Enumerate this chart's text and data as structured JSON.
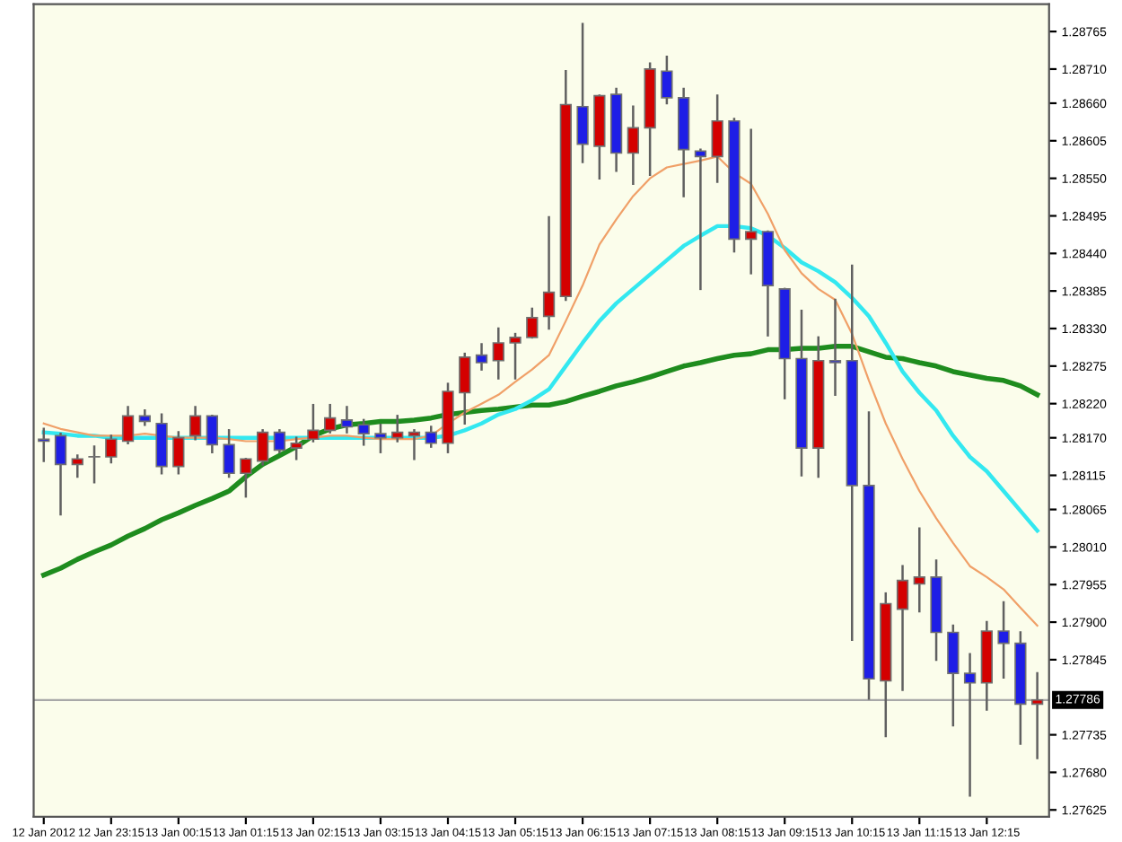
{
  "chart_data": {
    "type": "candlestick",
    "categories": [
      "12 Jan 2012",
      null,
      null,
      null,
      "12 Jan 23:15",
      null,
      null,
      null,
      "13 Jan 00:15",
      null,
      null,
      null,
      "13 Jan 01:15",
      null,
      null,
      null,
      "13 Jan 02:15",
      null,
      null,
      null,
      "13 Jan 03:15",
      null,
      null,
      null,
      "13 Jan 04:15",
      null,
      null,
      null,
      "13 Jan 05:15",
      null,
      null,
      null,
      "13 Jan 06:15",
      null,
      null,
      null,
      "13 Jan 07:15",
      null,
      null,
      null,
      "13 Jan 08:15",
      null,
      null,
      null,
      "13 Jan 09:15",
      null,
      null,
      null,
      "13 Jan 10:15",
      null,
      null,
      null,
      "13 Jan 11:15",
      null,
      null,
      null,
      "13 Jan 12:15",
      null,
      null,
      null
    ],
    "ohlc": [
      [
        1.28168,
        1.28183,
        1.28136,
        1.28165
      ],
      [
        1.28173,
        1.28176,
        1.28058,
        1.28131
      ],
      [
        1.28131,
        1.28144,
        1.28113,
        1.28139
      ],
      [
        1.28142,
        1.28157,
        1.28105,
        1.28142
      ],
      [
        1.28142,
        1.28173,
        1.28134,
        1.28168
      ],
      [
        1.28165,
        1.28215,
        1.28162,
        1.28202
      ],
      [
        1.28202,
        1.2821,
        1.28189,
        1.28194
      ],
      [
        1.28191,
        1.28204,
        1.28118,
        1.28128
      ],
      [
        1.28128,
        1.28178,
        1.28118,
        1.2817
      ],
      [
        1.28173,
        1.28215,
        1.28168,
        1.28202
      ],
      [
        1.28202,
        1.28202,
        1.28149,
        1.2816
      ],
      [
        1.2816,
        1.28181,
        1.28113,
        1.28118
      ],
      [
        1.28118,
        1.28139,
        1.28084,
        1.28139
      ],
      [
        1.28136,
        1.28181,
        1.28131,
        1.28178
      ],
      [
        1.28178,
        1.28181,
        1.28149,
        1.28152
      ],
      [
        1.28155,
        1.2817,
        1.28139,
        1.28162
      ],
      [
        1.28168,
        1.28218,
        1.28165,
        1.28181
      ],
      [
        1.28181,
        1.28218,
        1.28178,
        1.28199
      ],
      [
        1.28196,
        1.28215,
        1.28178,
        1.28186
      ],
      [
        1.28189,
        1.28196,
        1.2816,
        1.28176
      ],
      [
        1.28176,
        1.28189,
        1.28149,
        1.2817
      ],
      [
        1.2817,
        1.28202,
        1.28165,
        1.28178
      ],
      [
        1.28173,
        1.28181,
        1.28139,
        1.28178
      ],
      [
        1.28178,
        1.28186,
        1.28157,
        1.28162
      ],
      [
        1.28162,
        1.28249,
        1.28149,
        1.28238
      ],
      [
        1.28236,
        1.28293,
        1.28191,
        1.28288
      ],
      [
        1.28291,
        1.28307,
        1.2827,
        1.2828
      ],
      [
        1.28283,
        1.2833,
        1.28257,
        1.28309
      ],
      [
        1.28309,
        1.28322,
        1.28257,
        1.28317
      ],
      [
        1.28317,
        1.28359,
        1.28317,
        1.28346
      ],
      [
        1.28348,
        1.28493,
        1.2833,
        1.28383
      ],
      [
        1.28377,
        1.28707,
        1.28372,
        1.28658
      ],
      [
        1.28655,
        1.28776,
        1.28574,
        1.286
      ],
      [
        1.28597,
        1.28671,
        1.2855,
        1.28671
      ],
      [
        1.28673,
        1.28681,
        1.28561,
        1.28587
      ],
      [
        1.28587,
        1.28655,
        1.28542,
        1.28624
      ],
      [
        1.28624,
        1.28718,
        1.28555,
        1.2871
      ],
      [
        1.28707,
        1.28728,
        1.2866,
        1.28668
      ],
      [
        1.28668,
        1.28681,
        1.28524,
        1.28592
      ],
      [
        1.2859,
        1.28592,
        1.28388,
        1.28582
      ],
      [
        1.28582,
        1.28671,
        1.28545,
        1.28634
      ],
      [
        1.28634,
        1.28637,
        1.28443,
        1.28461
      ],
      [
        1.28461,
        1.28621,
        1.28411,
        1.28472
      ],
      [
        1.28472,
        1.28472,
        1.2832,
        1.28393
      ],
      [
        1.28388,
        1.28388,
        1.28228,
        1.28286
      ],
      [
        1.28286,
        1.28356,
        1.28115,
        1.28155
      ],
      [
        1.28155,
        1.28317,
        1.28113,
        1.28283
      ],
      [
        1.28283,
        1.28372,
        1.28233,
        1.2828
      ],
      [
        1.28283,
        1.28422,
        1.27874,
        1.281
      ],
      [
        1.281,
        1.28207,
        1.27788,
        1.27817
      ],
      [
        1.27814,
        1.27942,
        1.27733,
        1.27927
      ],
      [
        1.27919,
        1.27982,
        1.27801,
        1.27961
      ],
      [
        1.27956,
        1.28037,
        1.27916,
        1.27966
      ],
      [
        1.27966,
        1.2799,
        1.27845,
        1.27885
      ],
      [
        1.27885,
        1.27895,
        1.27749,
        1.27825
      ],
      [
        1.27825,
        1.27853,
        1.27646,
        1.27811
      ],
      [
        1.27811,
        1.279,
        1.27772,
        1.27887
      ],
      [
        1.27887,
        1.27929,
        1.27819,
        1.27869
      ],
      [
        1.27869,
        1.27885,
        1.27722,
        1.2778
      ],
      [
        1.2778,
        1.27825,
        1.27701,
        1.27786
      ]
    ],
    "colors": [
      "#1e1ee6",
      "#1e1ee6",
      "#d40000",
      "#1e1ee6",
      "#d40000",
      "#d40000",
      "#1e1ee6",
      "#1e1ee6",
      "#d40000",
      "#d40000",
      "#1e1ee6",
      "#1e1ee6",
      "#d40000",
      "#d40000",
      "#1e1ee6",
      "#d40000",
      "#d40000",
      "#d40000",
      "#1e1ee6",
      "#1e1ee6",
      "#1e1ee6",
      "#d40000",
      "#d40000",
      "#1e1ee6",
      "#d40000",
      "#d40000",
      "#1e1ee6",
      "#d40000",
      "#d40000",
      "#d40000",
      "#d40000",
      "#d40000",
      "#1e1ee6",
      "#d40000",
      "#1e1ee6",
      "#d40000",
      "#d40000",
      "#1e1ee6",
      "#1e1ee6",
      "#1e1ee6",
      "#d40000",
      "#1e1ee6",
      "#d40000",
      "#1e1ee6",
      "#1e1ee6",
      "#1e1ee6",
      "#d40000",
      "#1e1ee6",
      "#1e1ee6",
      "#1e1ee6",
      "#d40000",
      "#d40000",
      "#d40000",
      "#1e1ee6",
      "#1e1ee6",
      "#1e1ee6",
      "#d40000",
      "#1e1ee6",
      "#1e1ee6",
      "#d40000"
    ],
    "series": [
      {
        "type": "line",
        "color": "#1e8c1e",
        "values": [
          1.27969,
          1.27979,
          1.27992,
          1.28003,
          1.28013,
          1.28026,
          1.28037,
          1.2805,
          1.2806,
          1.28071,
          1.28081,
          1.28092,
          1.28113,
          1.28131,
          1.28144,
          1.28157,
          1.28173,
          1.28183,
          1.28189,
          1.28191,
          1.28194,
          1.28194,
          1.28196,
          1.28199,
          1.28204,
          1.28207,
          1.2821,
          1.28212,
          1.28215,
          1.28218,
          1.28218,
          1.28223,
          1.28231,
          1.28238,
          1.28246,
          1.28252,
          1.28259,
          1.28267,
          1.28275,
          1.2828,
          1.28286,
          1.28291,
          1.28293,
          1.28299,
          1.28299,
          1.28301,
          1.28301,
          1.28304,
          1.28304,
          1.28296,
          1.28288,
          1.28286,
          1.2828,
          1.28275,
          1.28267,
          1.28262,
          1.28257,
          1.28254,
          1.28246,
          1.28233
        ]
      },
      {
        "type": "line",
        "color": "#33e8f0",
        "values": [
          1.28178,
          1.28176,
          1.28173,
          1.28173,
          1.2817,
          1.2817,
          1.2817,
          1.2817,
          1.2817,
          1.2817,
          1.2817,
          1.2817,
          1.2817,
          1.2817,
          1.2817,
          1.2817,
          1.2817,
          1.2817,
          1.2817,
          1.2817,
          1.2817,
          1.2817,
          1.2817,
          1.2817,
          1.28173,
          1.28181,
          1.28191,
          1.28204,
          1.28212,
          1.28225,
          1.28241,
          1.28275,
          1.28309,
          1.28341,
          1.28367,
          1.28388,
          1.28409,
          1.2843,
          1.28451,
          1.28466,
          1.2848,
          1.2848,
          1.28477,
          1.28466,
          1.28448,
          1.28427,
          1.28414,
          1.28398,
          1.28375,
          1.28348,
          1.28309,
          1.28267,
          1.28236,
          1.2821,
          1.28173,
          1.28142,
          1.28121,
          1.28092,
          1.28063,
          1.28034
        ]
      },
      {
        "type": "line",
        "color": "#f0a068",
        "values": [
          1.28191,
          1.28183,
          1.28178,
          1.28173,
          1.28173,
          1.28173,
          1.28176,
          1.28173,
          1.2817,
          1.2817,
          1.2817,
          1.28168,
          1.28165,
          1.28165,
          1.28165,
          1.28168,
          1.2817,
          1.28173,
          1.28173,
          1.2817,
          1.28168,
          1.28168,
          1.28168,
          1.28173,
          1.28191,
          1.28207,
          1.2822,
          1.28233,
          1.28252,
          1.2827,
          1.28291,
          1.28341,
          1.28393,
          1.28453,
          1.2849,
          1.28524,
          1.2855,
          1.28566,
          1.28571,
          1.28576,
          1.28582,
          1.28558,
          1.28542,
          1.28498,
          1.28445,
          1.28411,
          1.28388,
          1.28372,
          1.28322,
          1.28254,
          1.28191,
          1.28139,
          1.28092,
          1.28052,
          1.28016,
          1.27982,
          1.27966,
          1.27948,
          1.27921,
          1.27895
        ]
      }
    ],
    "ylim": [
      1.27615,
      1.28805
    ],
    "yticks": [
      1.28765,
      {
        "value": 1.2871,
        "label": "1.28710"
      },
      {
        "value": 1.2866,
        "label": "1.28660"
      },
      1.28605,
      {
        "value": 1.2855,
        "label": "1.28550"
      },
      1.28495,
      {
        "value": 1.2844,
        "label": "1.28440"
      },
      1.28385,
      {
        "value": 1.2833,
        "label": "1.28330"
      },
      1.28275,
      {
        "value": 1.2822,
        "label": "1.28220"
      },
      {
        "value": 1.2817,
        "label": "1.28170"
      },
      1.28115,
      1.28065,
      {
        "value": 1.2801,
        "label": "1.28010"
      },
      1.27955,
      {
        "value": 1.279,
        "label": "1.27900"
      },
      1.27845,
      1.27735,
      {
        "value": 1.2768,
        "label": "1.27680"
      },
      1.27625
    ],
    "ref_lines": [
      {
        "axis": "y",
        "value": 1.27786,
        "label": "1.27786",
        "color": "#a8a8a8"
      }
    ],
    "grid": false,
    "legend": false
  }
}
